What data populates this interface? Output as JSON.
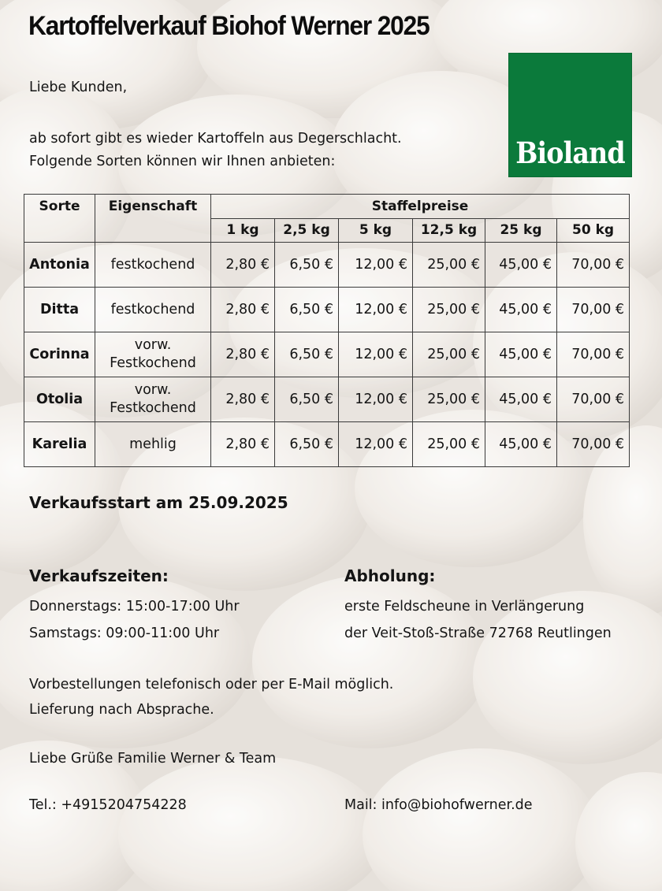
{
  "title": "Kartoffelverkauf Biohof Werner 2025",
  "greeting": "Liebe Kunden,",
  "intro_line1": "ab sofort gibt es wieder Kartoffeln aus Degerschlacht.",
  "intro_line2": "Folgende Sorten können wir Ihnen anbieten:",
  "logo": {
    "text": "Bioland",
    "color": "#0b7a3b",
    "icon": "bioland-logo"
  },
  "table": {
    "col_sorte": "Sorte",
    "col_eigenschaft": "Eigenschaft",
    "col_staffel": "Staffelpreise",
    "sizes": [
      "1 kg",
      "2,5 kg",
      "5 kg",
      "12,5 kg",
      "25 kg",
      "50 kg"
    ],
    "rows": [
      {
        "sorte": "Antonia",
        "eig1": "festkochend",
        "eig2": "",
        "prices": [
          "2,80 €",
          "6,50 €",
          "12,00 €",
          "25,00 €",
          "45,00 €",
          "70,00 €"
        ]
      },
      {
        "sorte": "Ditta",
        "eig1": "festkochend",
        "eig2": "",
        "prices": [
          "2,80 €",
          "6,50 €",
          "12,00 €",
          "25,00 €",
          "45,00 €",
          "70,00 €"
        ]
      },
      {
        "sorte": "Corinna",
        "eig1": "vorw.",
        "eig2": "Festkochend",
        "prices": [
          "2,80 €",
          "6,50 €",
          "12,00 €",
          "25,00 €",
          "45,00 €",
          "70,00 €"
        ]
      },
      {
        "sorte": "Otolia",
        "eig1": "vorw.",
        "eig2": "Festkochend",
        "prices": [
          "2,80 €",
          "6,50 €",
          "12,00 €",
          "25,00 €",
          "45,00 €",
          "70,00 €"
        ]
      },
      {
        "sorte": "Karelia",
        "eig1": "mehlig",
        "eig2": "",
        "prices": [
          "2,80 €",
          "6,50 €",
          "12,00 €",
          "25,00 €",
          "45,00 €",
          "70,00 €"
        ]
      }
    ]
  },
  "verkaufsstart": "Verkaufsstart am 25.09.2025",
  "zeiten": {
    "heading": "Verkaufszeiten:",
    "line1": "Donnerstags: 15:00-17:00 Uhr",
    "line2": "Samstags: 09:00-11:00 Uhr"
  },
  "abholung": {
    "heading": "Abholung:",
    "line1": "erste Feldscheune in Verlängerung",
    "line2": "der Veit-Stoß-Straße 72768 Reutlingen"
  },
  "vorbestellung": "Vorbestellungen telefonisch oder per E-Mail möglich.",
  "lieferung": "Lieferung nach Absprache.",
  "gruss": "Liebe Grüße Familie Werner & Team",
  "tel": "Tel.: +4915204754228",
  "mail": "Mail: info@biohofwerner.de"
}
